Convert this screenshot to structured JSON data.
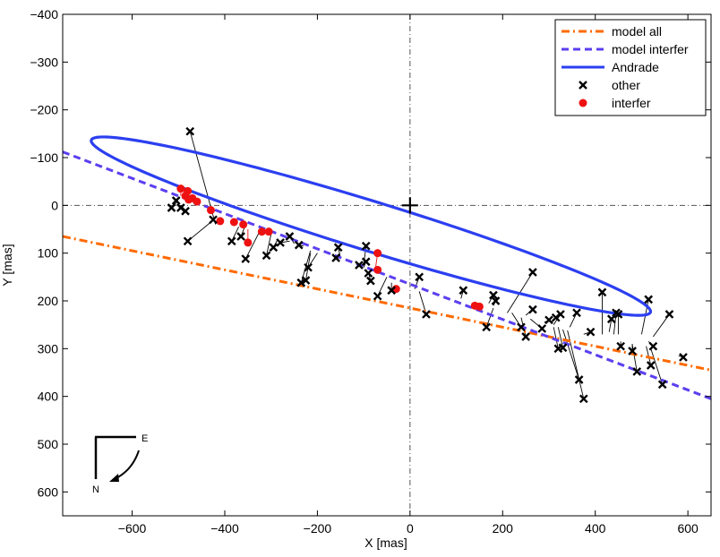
{
  "chart_data": {
    "type": "scatter",
    "title": "",
    "xlabel": "X [mas]",
    "ylabel": "Y [mas]",
    "xlim": [
      -750,
      650
    ],
    "ylim": [
      650,
      -400
    ],
    "y_reversed": true,
    "grid": false,
    "xticks": [
      {
        "value": -600,
        "label": "−600"
      },
      {
        "value": -400,
        "label": "−400"
      },
      {
        "value": -200,
        "label": "−200"
      },
      {
        "value": 0,
        "label": "0"
      },
      {
        "value": 200,
        "label": "200"
      },
      {
        "value": 400,
        "label": "400"
      },
      {
        "value": 600,
        "label": "600"
      }
    ],
    "yticks": [
      {
        "value": -400,
        "label": "−400"
      },
      {
        "value": -300,
        "label": "−300"
      },
      {
        "value": -200,
        "label": "−200"
      },
      {
        "value": -100,
        "label": "−100"
      },
      {
        "value": 0,
        "label": "0"
      },
      {
        "value": 100,
        "label": "100"
      },
      {
        "value": 200,
        "label": "200"
      },
      {
        "value": 300,
        "label": "300"
      },
      {
        "value": 400,
        "label": "400"
      },
      {
        "value": 500,
        "label": "500"
      },
      {
        "value": 600,
        "label": "600"
      }
    ],
    "legend": {
      "position": "top-right",
      "entries": [
        {
          "label": "model all",
          "style": "dash-dot",
          "color": "#ff6a00"
        },
        {
          "label": "model interfer",
          "style": "dashed",
          "color": "#5b3ff0"
        },
        {
          "label": "Andrade",
          "style": "solid",
          "color": "#2b3ff0"
        },
        {
          "label": "other",
          "style": "marker-x",
          "color": "#000000"
        },
        {
          "label": "interfer",
          "style": "marker-dot",
          "color": "#ee1111"
        }
      ]
    },
    "model_all_line": {
      "color": "#ff6a00",
      "points": [
        [
          -750,
          65
        ],
        [
          650,
          345
        ]
      ]
    },
    "model_interfer_line": {
      "color": "#5b3ff0",
      "points": [
        [
          -750,
          -112
        ],
        [
          650,
          405
        ]
      ]
    },
    "andrade_ellipse": {
      "color": "#2b3ff0",
      "center": [
        -84.5,
        43.5
      ],
      "semi_major": 630,
      "semi_minor": 52,
      "angle_deg": 16.6
    },
    "reference_lines": {
      "x": 0,
      "y": 0,
      "color": "#555555"
    },
    "origin_marker": {
      "x": 0,
      "y": 0,
      "symbol": "+"
    },
    "compass": {
      "east_label": "E",
      "north_label": "N"
    },
    "other_points": [
      {
        "x": -475,
        "y": -155,
        "mx": -420,
        "my": 40
      },
      {
        "x": -515,
        "y": 5,
        "mx": -505,
        "my": -5
      },
      {
        "x": -505,
        "y": -10,
        "mx": -505,
        "my": -5
      },
      {
        "x": -495,
        "y": 5,
        "mx": -495,
        "my": 0
      },
      {
        "x": -485,
        "y": 12,
        "mx": -490,
        "my": 5
      },
      {
        "x": -480,
        "y": 75,
        "mx": -430,
        "my": 35
      },
      {
        "x": -425,
        "y": 30,
        "mx": -425,
        "my": 30
      },
      {
        "x": -385,
        "y": 75,
        "mx": -370,
        "my": 45
      },
      {
        "x": -365,
        "y": 65,
        "mx": -355,
        "my": 40
      },
      {
        "x": -355,
        "y": 112,
        "mx": -325,
        "my": 55
      },
      {
        "x": -310,
        "y": 105,
        "mx": -300,
        "my": 60
      },
      {
        "x": -295,
        "y": 88,
        "mx": -285,
        "my": 70
      },
      {
        "x": -280,
        "y": 78,
        "mx": -260,
        "my": 75
      },
      {
        "x": -260,
        "y": 65,
        "mx": -250,
        "my": 80
      },
      {
        "x": -240,
        "y": 83,
        "mx": -230,
        "my": 85
      },
      {
        "x": -235,
        "y": 162,
        "mx": -215,
        "my": 95
      },
      {
        "x": -225,
        "y": 157,
        "mx": -215,
        "my": 100
      },
      {
        "x": -220,
        "y": 130,
        "mx": -200,
        "my": 100
      },
      {
        "x": -155,
        "y": 88,
        "mx": -150,
        "my": 110
      },
      {
        "x": -160,
        "y": 110,
        "mx": -155,
        "my": 112
      },
      {
        "x": -110,
        "y": 125,
        "mx": -110,
        "my": 125
      },
      {
        "x": -95,
        "y": 85,
        "mx": -100,
        "my": 125
      },
      {
        "x": -95,
        "y": 118,
        "mx": -100,
        "my": 130
      },
      {
        "x": -90,
        "y": 142,
        "mx": -95,
        "my": 135
      },
      {
        "x": -85,
        "y": 158,
        "mx": -90,
        "my": 140
      },
      {
        "x": -70,
        "y": 190,
        "mx": -50,
        "my": 150
      },
      {
        "x": -40,
        "y": 178,
        "mx": -40,
        "my": 162
      },
      {
        "x": 20,
        "y": 150,
        "mx": 10,
        "my": 175
      },
      {
        "x": 35,
        "y": 228,
        "mx": 20,
        "my": 180
      },
      {
        "x": 115,
        "y": 178,
        "mx": 110,
        "my": 195
      },
      {
        "x": 180,
        "y": 188,
        "mx": 170,
        "my": 205
      },
      {
        "x": 185,
        "y": 200,
        "mx": 180,
        "my": 210
      },
      {
        "x": 265,
        "y": 140,
        "mx": 210,
        "my": 225
      },
      {
        "x": 265,
        "y": 218,
        "mx": 250,
        "my": 230
      },
      {
        "x": 165,
        "y": 255,
        "mx": 180,
        "my": 215
      },
      {
        "x": 240,
        "y": 255,
        "mx": 220,
        "my": 225
      },
      {
        "x": 250,
        "y": 275,
        "mx": 240,
        "my": 235
      },
      {
        "x": 285,
        "y": 258,
        "mx": 260,
        "my": 238
      },
      {
        "x": 300,
        "y": 240,
        "mx": 290,
        "my": 245
      },
      {
        "x": 315,
        "y": 235,
        "mx": 305,
        "my": 245
      },
      {
        "x": 325,
        "y": 228,
        "mx": 310,
        "my": 250
      },
      {
        "x": 320,
        "y": 300,
        "mx": 310,
        "my": 255
      },
      {
        "x": 330,
        "y": 298,
        "mx": 320,
        "my": 255
      },
      {
        "x": 360,
        "y": 225,
        "mx": 345,
        "my": 255
      },
      {
        "x": 365,
        "y": 365,
        "mx": 330,
        "my": 260
      },
      {
        "x": 375,
        "y": 405,
        "mx": 340,
        "my": 262
      },
      {
        "x": 390,
        "y": 265,
        "mx": 375,
        "my": 270
      },
      {
        "x": 415,
        "y": 182,
        "mx": 415,
        "my": 270
      },
      {
        "x": 435,
        "y": 238,
        "mx": 430,
        "my": 265
      },
      {
        "x": 445,
        "y": 225,
        "mx": 440,
        "my": 270
      },
      {
        "x": 450,
        "y": 228,
        "mx": 450,
        "my": 270
      },
      {
        "x": 455,
        "y": 295,
        "mx": 455,
        "my": 285
      },
      {
        "x": 480,
        "y": 305,
        "mx": 480,
        "my": 290
      },
      {
        "x": 490,
        "y": 348,
        "mx": 480,
        "my": 292
      },
      {
        "x": 515,
        "y": 197,
        "mx": 500,
        "my": 270
      },
      {
        "x": 525,
        "y": 295,
        "mx": 515,
        "my": 285
      },
      {
        "x": 520,
        "y": 335,
        "mx": 510,
        "my": 295
      },
      {
        "x": 545,
        "y": 375,
        "mx": 520,
        "my": 300
      },
      {
        "x": 560,
        "y": 228,
        "mx": 525,
        "my": 275
      },
      {
        "x": 590,
        "y": 318,
        "mx": 580,
        "my": 315
      }
    ],
    "interfer_points": [
      {
        "x": -495,
        "y": -35,
        "mx": -495,
        "my": -20
      },
      {
        "x": -485,
        "y": -20,
        "mx": -490,
        "my": -15
      },
      {
        "x": -480,
        "y": -30,
        "mx": -485,
        "my": -20
      },
      {
        "x": -478,
        "y": -12,
        "mx": -480,
        "my": -10
      },
      {
        "x": -470,
        "y": -15,
        "mx": -470,
        "my": -15
      },
      {
        "x": -460,
        "y": -8,
        "mx": -460,
        "my": -8
      },
      {
        "x": -430,
        "y": 10,
        "mx": -430,
        "my": 10
      },
      {
        "x": -410,
        "y": 33,
        "mx": -410,
        "my": 30
      },
      {
        "x": -380,
        "y": 35,
        "mx": -375,
        "my": 40
      },
      {
        "x": -360,
        "y": 40,
        "mx": -360,
        "my": 45
      },
      {
        "x": -350,
        "y": 78,
        "mx": -350,
        "my": 50
      },
      {
        "x": -320,
        "y": 55,
        "mx": -320,
        "my": 60
      },
      {
        "x": -305,
        "y": 55,
        "mx": -300,
        "my": 62
      },
      {
        "x": -70,
        "y": 100,
        "mx": -75,
        "my": 135
      },
      {
        "x": -70,
        "y": 135,
        "mx": -70,
        "my": 135
      },
      {
        "x": -30,
        "y": 175,
        "mx": -30,
        "my": 175
      },
      {
        "x": 140,
        "y": 210,
        "mx": 140,
        "my": 210
      },
      {
        "x": 150,
        "y": 212,
        "mx": 150,
        "my": 212
      }
    ]
  }
}
